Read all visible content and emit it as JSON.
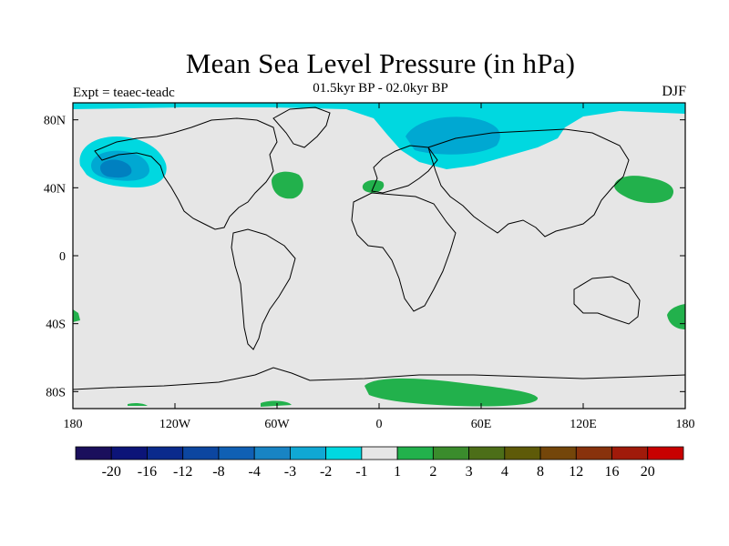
{
  "title": "Mean Sea Level Pressure (in hPa)",
  "experiment_label": "Expt = teaec-teadc",
  "period_label": "01.5kyr BP - 02.0kyr BP",
  "season_label": "DJF",
  "colors": {
    "background": "#e6e6e6",
    "neg_light": "#00d8e0",
    "neg_mid": "#00a8d2",
    "neg_dark": "#0080c0",
    "pos_light": "#22b14c"
  },
  "y_ticks": [
    "80N",
    "40N",
    "0",
    "40S",
    "80S"
  ],
  "x_ticks": [
    "180",
    "120W",
    "60W",
    "0",
    "60E",
    "120E",
    "180"
  ],
  "colorbar": {
    "labels": [
      "-20",
      "-16",
      "-12",
      "-8",
      "-4",
      "-3",
      "-2",
      "-1",
      "1",
      "2",
      "3",
      "4",
      "8",
      "12",
      "16",
      "20"
    ],
    "colors": [
      "#1a0f5c",
      "#0c1478",
      "#0a2a8c",
      "#0c46a0",
      "#1060b4",
      "#1884c4",
      "#10a8d4",
      "#00d8e0",
      "#e6e6e6",
      "#22b14c",
      "#3a8c2c",
      "#4c6e18",
      "#5e5a08",
      "#74460a",
      "#88320c",
      "#a01a0a",
      "#c80000"
    ]
  }
}
